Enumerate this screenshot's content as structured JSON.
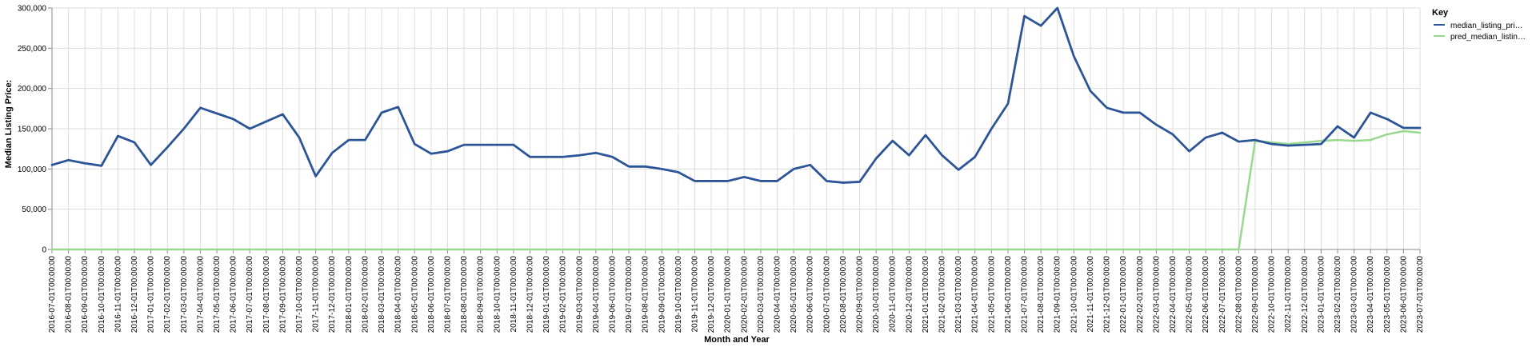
{
  "chart_data": {
    "type": "line",
    "xlabel": "Month and Year",
    "ylabel": "Median Listing Price:",
    "ylim": [
      0,
      300000
    ],
    "yticks": [
      "0",
      "50,000",
      "100,000",
      "150,000",
      "200,000",
      "250,000",
      "300,000"
    ],
    "ytick_values": [
      0,
      50000,
      100000,
      150000,
      200000,
      250000,
      300000
    ],
    "grid": true,
    "legend": {
      "title": "Key",
      "position": "top-right"
    },
    "categories": [
      "2016-07-01T00:00:00",
      "2016-08-01T00:00:00",
      "2016-09-01T00:00:00",
      "2016-10-01T00:00:00",
      "2016-11-01T00:00:00",
      "2016-12-01T00:00:00",
      "2017-01-01T00:00:00",
      "2017-02-01T00:00:00",
      "2017-03-01T00:00:00",
      "2017-04-01T00:00:00",
      "2017-05-01T00:00:00",
      "2017-06-01T00:00:00",
      "2017-07-01T00:00:00",
      "2017-08-01T00:00:00",
      "2017-09-01T00:00:00",
      "2017-10-01T00:00:00",
      "2017-11-01T00:00:00",
      "2017-12-01T00:00:00",
      "2018-01-01T00:00:00",
      "2018-02-01T00:00:00",
      "2018-03-01T00:00:00",
      "2018-04-01T00:00:00",
      "2018-05-01T00:00:00",
      "2018-06-01T00:00:00",
      "2018-07-01T00:00:00",
      "2018-08-01T00:00:00",
      "2018-09-01T00:00:00",
      "2018-10-01T00:00:00",
      "2018-11-01T00:00:00",
      "2018-12-01T00:00:00",
      "2019-01-01T00:00:00",
      "2019-02-01T00:00:00",
      "2019-03-01T00:00:00",
      "2019-04-01T00:00:00",
      "2019-06-01T00:00:00",
      "2019-07-01T00:00:00",
      "2019-08-01T00:00:00",
      "2019-09-01T00:00:00",
      "2019-10-01T00:00:00",
      "2019-11-01T00:00:00",
      "2019-12-01T00:00:00",
      "2020-01-01T00:00:00",
      "2020-02-01T00:00:00",
      "2020-03-01T00:00:00",
      "2020-04-01T00:00:00",
      "2020-05-01T00:00:00",
      "2020-06-01T00:00:00",
      "2020-07-01T00:00:00",
      "2020-08-01T00:00:00",
      "2020-09-01T00:00:00",
      "2020-10-01T00:00:00",
      "2020-11-01T00:00:00",
      "2020-12-01T00:00:00",
      "2021-01-01T00:00:00",
      "2021-02-01T00:00:00",
      "2021-03-01T00:00:00",
      "2021-04-01T00:00:00",
      "2021-05-01T00:00:00",
      "2021-06-01T00:00:00",
      "2021-07-01T00:00:00",
      "2021-08-01T00:00:00",
      "2021-09-01T00:00:00",
      "2021-10-01T00:00:00",
      "2021-11-01T00:00:00",
      "2021-12-01T00:00:00",
      "2022-01-01T00:00:00",
      "2022-02-01T00:00:00",
      "2022-03-01T00:00:00",
      "2022-04-01T00:00:00",
      "2022-05-01T00:00:00",
      "2022-06-01T00:00:00",
      "2022-07-01T00:00:00",
      "2022-08-01T00:00:00",
      "2022-09-01T00:00:00",
      "2022-10-01T00:00:00",
      "2022-11-01T00:00:00",
      "2022-12-01T00:00:00",
      "2023-01-01T00:00:00",
      "2023-02-01T00:00:00",
      "2023-03-01T00:00:00",
      "2023-04-01T00:00:00",
      "2023-05-01T00:00:00",
      "2023-06-01T00:00:00",
      "2023-07-01T00:00:00"
    ],
    "series": [
      {
        "name": "median_listing_pri…",
        "color": "#2c5597",
        "values": [
          105000,
          111000,
          107000,
          104000,
          141000,
          133000,
          105000,
          127000,
          150000,
          176000,
          169000,
          162000,
          150000,
          159000,
          168000,
          139000,
          91000,
          120000,
          136000,
          136000,
          170000,
          177000,
          131000,
          119000,
          122000,
          130000,
          130000,
          130000,
          130000,
          115000,
          115000,
          115000,
          117000,
          120000,
          115000,
          103000,
          103000,
          100000,
          96000,
          85000,
          85000,
          85000,
          90000,
          85000,
          85000,
          100000,
          105000,
          85000,
          83000,
          84000,
          113000,
          135000,
          117000,
          142000,
          117000,
          99000,
          115000,
          150000,
          181000,
          290000,
          278000,
          300000,
          240000,
          197000,
          176000,
          170000,
          170000,
          155000,
          143000,
          122000,
          139000,
          145000,
          134000,
          136000,
          131000,
          129000,
          130000,
          131000,
          153000,
          139000,
          170000,
          162000,
          151000,
          151000
        ]
      },
      {
        "name": "pred_median_listin…",
        "color": "#98d98e",
        "values": [
          0,
          0,
          0,
          0,
          0,
          0,
          0,
          0,
          0,
          0,
          0,
          0,
          0,
          0,
          0,
          0,
          0,
          0,
          0,
          0,
          0,
          0,
          0,
          0,
          0,
          0,
          0,
          0,
          0,
          0,
          0,
          0,
          0,
          0,
          0,
          0,
          0,
          0,
          0,
          0,
          0,
          0,
          0,
          0,
          0,
          0,
          0,
          0,
          0,
          0,
          0,
          0,
          0,
          0,
          0,
          0,
          0,
          0,
          0,
          0,
          0,
          0,
          0,
          0,
          0,
          0,
          0,
          0,
          0,
          0,
          0,
          0,
          0,
          135000,
          133000,
          131000,
          133000,
          135000,
          136000,
          135000,
          136000,
          143000,
          147000,
          145000
        ]
      }
    ]
  }
}
